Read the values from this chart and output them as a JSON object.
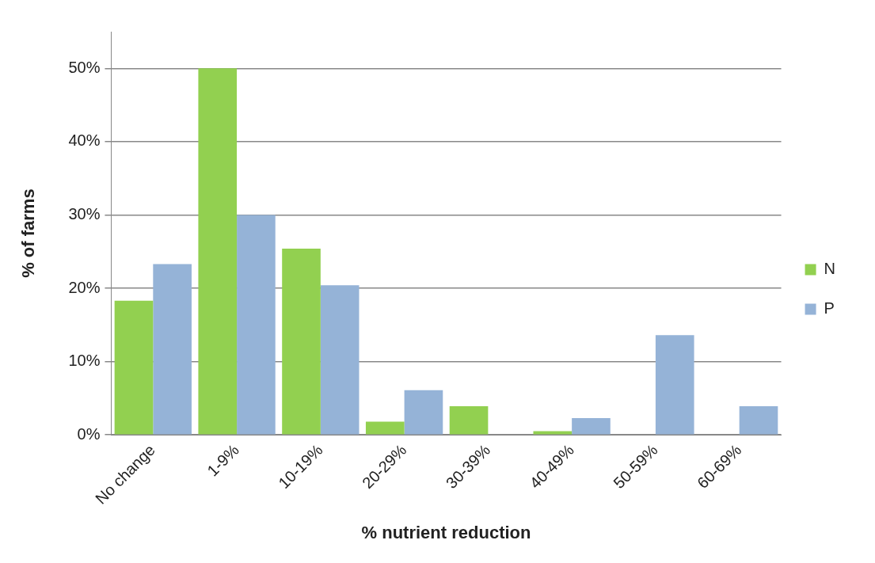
{
  "chart_data": {
    "type": "bar",
    "xlabel": "% nutrient reduction",
    "ylabel": "% of farms",
    "categories": [
      "No change",
      "1-9%",
      "10-19%",
      "20-29%",
      "30-39%",
      "40-49%",
      "50-59%",
      "60-69%"
    ],
    "series": [
      {
        "name": "N",
        "color": "#92d050",
        "values": [
          18.3,
          50,
          25.4,
          1.8,
          3.9,
          0.5,
          0,
          0
        ]
      },
      {
        "name": "P",
        "color": "#95b3d7",
        "values": [
          23.3,
          30,
          20.4,
          6.1,
          0,
          2.3,
          13.6,
          3.9
        ]
      }
    ],
    "ylim": [
      0,
      55
    ],
    "yticks": [
      {
        "value": 0,
        "label": "0%"
      },
      {
        "value": 10,
        "label": "10%"
      },
      {
        "value": 20,
        "label": "20%"
      },
      {
        "value": 30,
        "label": "30%"
      },
      {
        "value": 40,
        "label": "40%"
      },
      {
        "value": 50,
        "label": "50%"
      }
    ],
    "grid": "y",
    "legend": "right"
  }
}
